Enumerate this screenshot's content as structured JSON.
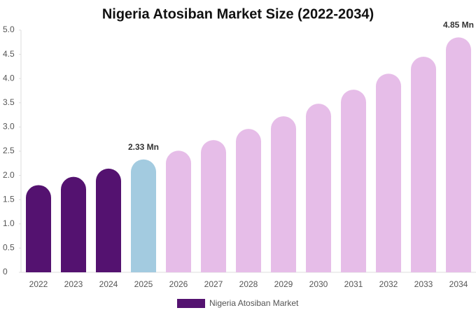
{
  "chart_data": {
    "type": "bar",
    "title": "Nigeria Atosiban Market Size (2022-2034)",
    "categories": [
      "2022",
      "2023",
      "2024",
      "2025",
      "2026",
      "2027",
      "2028",
      "2029",
      "2030",
      "2031",
      "2032",
      "2033",
      "2034"
    ],
    "series": [
      {
        "name": "Nigeria Atosiban Market",
        "color": "#541270",
        "values": [
          1.8,
          1.97,
          2.14,
          2.33,
          2.51,
          2.73,
          2.96,
          3.22,
          3.48,
          3.77,
          4.1,
          4.45,
          4.85
        ],
        "colors": [
          "#541270",
          "#541270",
          "#541270",
          "#a3cbe0",
          "#e6bde8",
          "#e6bde8",
          "#e6bde8",
          "#e6bde8",
          "#e6bde8",
          "#e6bde8",
          "#e6bde8",
          "#e6bde8",
          "#e6bde8"
        ],
        "value_labels": [
          null,
          null,
          null,
          "2.33 Mn",
          null,
          null,
          null,
          null,
          null,
          null,
          null,
          null,
          "4.85 Mn"
        ]
      }
    ],
    "ylim": [
      0,
      5
    ],
    "yticks": [
      0,
      0.5,
      {
        "value": 1,
        "label": "1.0"
      },
      1.5,
      {
        "value": 2,
        "label": "2.0"
      },
      2.5,
      {
        "value": 3,
        "label": "3.0"
      },
      3.5,
      {
        "value": 4,
        "label": "4.0"
      },
      4.5,
      {
        "value": 5,
        "label": "5.0"
      }
    ],
    "grid": false,
    "legend": "bottom"
  }
}
